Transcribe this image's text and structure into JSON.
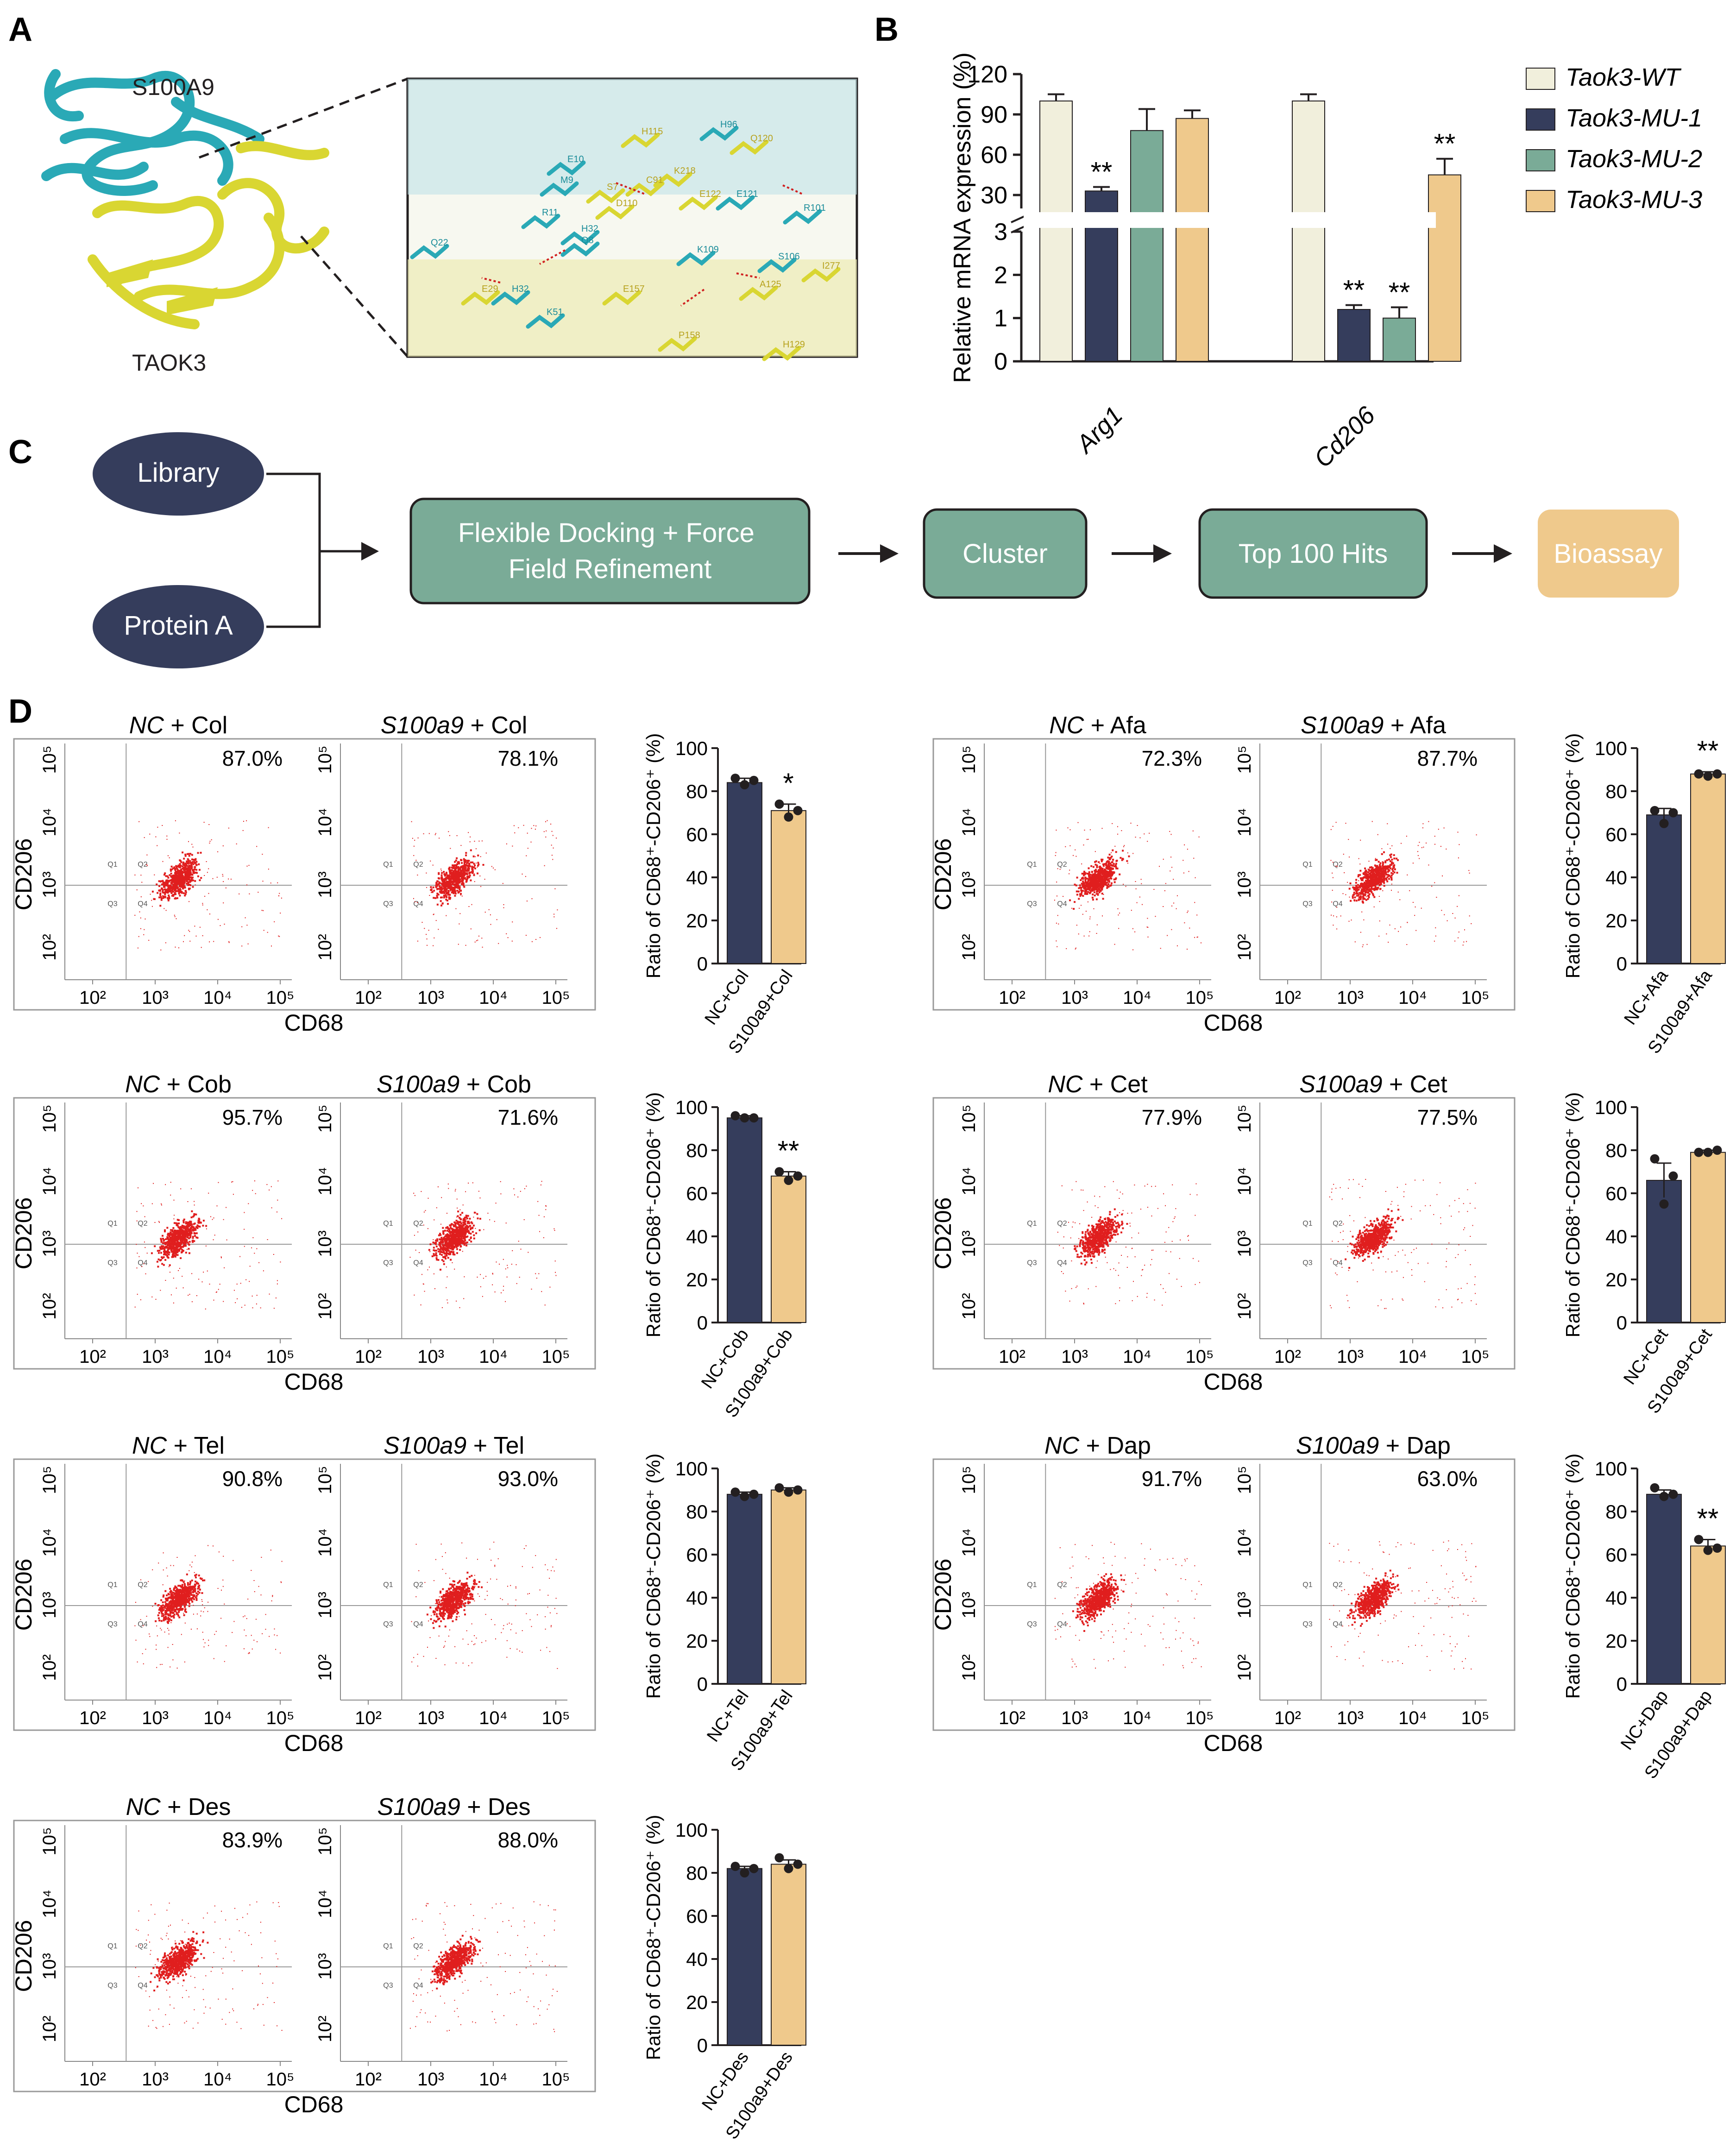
{
  "panels": {
    "A": "A",
    "B": "B",
    "C": "C",
    "D": "D"
  },
  "colors": {
    "navy": "#353d5c",
    "green": "#7aab97",
    "tan": "#efc98c",
    "cream": "#f1efdc",
    "flow_box": "#7aab97",
    "dot": "#e01e1e",
    "cyan": "#2aa9b6",
    "yellow": "#d9d632"
  },
  "panel_a": {
    "label_top": "S100A9",
    "label_bottom": "TAOK3",
    "residue_labels": [
      "H115",
      "H96",
      "Q120",
      "E10",
      "K218",
      "C91",
      "E122",
      "E121",
      "R101",
      "M9",
      "S7",
      "D110",
      "R11",
      "H32",
      "Q8",
      "Q22",
      "K109",
      "S106",
      "I277",
      "E29",
      "H32",
      "K51",
      "E157",
      "A125",
      "P158",
      "H129"
    ]
  },
  "chart_data": [
    {
      "type": "bar",
      "id": "panel-b",
      "ylabel": "Relative mRNA expression (%)",
      "categories": [
        "Arg1",
        "Cd206"
      ],
      "series": [
        {
          "name": "Taok3-WT",
          "values": [
            100,
            100
          ],
          "errors": [
            5,
            5
          ],
          "sig": [
            "",
            ""
          ]
        },
        {
          "name": "Taok3-MU-1",
          "values": [
            33,
            1.2
          ],
          "errors": [
            3,
            0.1
          ],
          "sig": [
            "**",
            "**"
          ]
        },
        {
          "name": "Taok3-MU-2",
          "values": [
            78,
            1.0
          ],
          "errors": [
            16,
            0.25
          ],
          "sig": [
            "",
            "**"
          ]
        },
        {
          "name": "Taok3-MU-3",
          "values": [
            87,
            45
          ],
          "errors": [
            6,
            12
          ],
          "sig": [
            "",
            "**"
          ]
        }
      ],
      "axis_upper": {
        "range": [
          20,
          120
        ],
        "ticks": [
          "120",
          "90",
          "60",
          "30"
        ]
      },
      "axis_lower": {
        "range": [
          0,
          3
        ],
        "ticks": [
          "3",
          "2",
          "1",
          "0"
        ]
      }
    },
    {
      "type": "bar",
      "id": "col",
      "categories": [
        "NC+Col",
        "S100a9+Col"
      ],
      "values": [
        84,
        71
      ],
      "errors": [
        2,
        3
      ],
      "points": [
        [
          86,
          83,
          85
        ],
        [
          74,
          68,
          71
        ]
      ],
      "sig": "*",
      "ylim": [
        0,
        100
      ],
      "ylabel": "Ratio of CD68⁺-CD206⁺ (%)",
      "yticks": [
        "0",
        "20",
        "40",
        "60",
        "80",
        "100"
      ]
    },
    {
      "type": "bar",
      "id": "afa",
      "categories": [
        "NC+Afa",
        "S100a9+Afa"
      ],
      "values": [
        69,
        88
      ],
      "errors": [
        3,
        1
      ],
      "points": [
        [
          71,
          65,
          70
        ],
        [
          88,
          87,
          88
        ]
      ],
      "sig": "**",
      "ylim": [
        0,
        100
      ],
      "ylabel": "Ratio of CD68⁺-CD206⁺ (%)",
      "yticks": [
        "0",
        "20",
        "40",
        "60",
        "80",
        "100"
      ]
    },
    {
      "type": "bar",
      "id": "cob",
      "categories": [
        "NC+Cob",
        "S100a9+Cob"
      ],
      "values": [
        95,
        68
      ],
      "errors": [
        1,
        2
      ],
      "points": [
        [
          96,
          95,
          95
        ],
        [
          70,
          66,
          68
        ]
      ],
      "sig": "**",
      "ylim": [
        0,
        100
      ],
      "ylabel": "Ratio of CD68⁺-CD206⁺ (%)",
      "yticks": [
        "0",
        "20",
        "40",
        "60",
        "80",
        "100"
      ]
    },
    {
      "type": "bar",
      "id": "cet",
      "categories": [
        "NC+Cet",
        "S100a9+Cet"
      ],
      "values": [
        66,
        79
      ],
      "errors": [
        8,
        1
      ],
      "points": [
        [
          76,
          55,
          68
        ],
        [
          79,
          79,
          80
        ]
      ],
      "sig": "",
      "ylim": [
        0,
        100
      ],
      "ylabel": "Ratio of CD68⁺-CD206⁺ (%)",
      "yticks": [
        "0",
        "20",
        "40",
        "60",
        "80",
        "100"
      ]
    },
    {
      "type": "bar",
      "id": "tel",
      "categories": [
        "NC+Tel",
        "S100a9+Tel"
      ],
      "values": [
        88,
        90
      ],
      "errors": [
        1,
        1
      ],
      "points": [
        [
          89,
          87,
          88
        ],
        [
          91,
          89,
          90
        ]
      ],
      "sig": "",
      "ylim": [
        0,
        100
      ],
      "ylabel": "Ratio of CD68⁺-CD206⁺ (%)",
      "yticks": [
        "0",
        "20",
        "40",
        "60",
        "80",
        "100"
      ]
    },
    {
      "type": "bar",
      "id": "dap",
      "categories": [
        "NC+Dap",
        "S100a9+Dap"
      ],
      "values": [
        88,
        64
      ],
      "errors": [
        2,
        3
      ],
      "points": [
        [
          91,
          87,
          88
        ],
        [
          67,
          62,
          63
        ]
      ],
      "sig": "**",
      "ylim": [
        0,
        100
      ],
      "ylabel": "Ratio of CD68⁺-CD206⁺ (%)",
      "yticks": [
        "0",
        "20",
        "40",
        "60",
        "80",
        "100"
      ]
    },
    {
      "type": "bar",
      "id": "des",
      "categories": [
        "NC+Des",
        "S100a9+Des"
      ],
      "values": [
        82,
        84
      ],
      "errors": [
        1,
        2
      ],
      "points": [
        [
          83,
          80,
          82
        ],
        [
          87,
          82,
          84
        ]
      ],
      "sig": "",
      "ylim": [
        0,
        100
      ],
      "ylabel": "Ratio of CD68⁺-CD206⁺ (%)",
      "yticks": [
        "0",
        "20",
        "40",
        "60",
        "80",
        "100"
      ]
    }
  ],
  "panel_c": {
    "nodes": {
      "library": "Library",
      "protein": "Protein A"
    },
    "steps": [
      "Flexible Docking + Force Field Refinement",
      "Cluster",
      "Top 100 Hits",
      "Bioassay"
    ]
  },
  "flow": {
    "axes": {
      "x": "CD68",
      "y": "CD206"
    },
    "decades": [
      "10²",
      "10³",
      "10⁴",
      "10⁵"
    ],
    "quadrants": [
      "Q1",
      "Q2",
      "Q3",
      "Q4"
    ],
    "groups": [
      {
        "id": "col",
        "left_italic": "NC",
        "left_rest": " + Col",
        "left_pct": "87.0%",
        "right_italic": "S100a9",
        "right_rest": " + Col",
        "right_pct": "78.1%"
      },
      {
        "id": "afa",
        "left_italic": "NC",
        "left_rest": " + Afa",
        "left_pct": "72.3%",
        "right_italic": "S100a9",
        "right_rest": " + Afa",
        "right_pct": "87.7%"
      },
      {
        "id": "cob",
        "left_italic": "NC",
        "left_rest": " + Cob",
        "left_pct": "95.7%",
        "right_italic": "S100a9",
        "right_rest": " + Cob",
        "right_pct": "71.6%"
      },
      {
        "id": "cet",
        "left_italic": "NC",
        "left_rest": " + Cet",
        "left_pct": "77.9%",
        "right_italic": "S100a9",
        "right_rest": " + Cet",
        "right_pct": "77.5%"
      },
      {
        "id": "tel",
        "left_italic": "NC",
        "left_rest": " + Tel",
        "left_pct": "90.8%",
        "right_italic": "S100a9",
        "right_rest": "  + Tel",
        "right_pct": "93.0%"
      },
      {
        "id": "dap",
        "left_italic": "NC",
        "left_rest": " + Dap",
        "left_pct": "91.7%",
        "right_italic": "S100a9",
        "right_rest": " + Dap",
        "right_pct": "63.0%"
      },
      {
        "id": "des",
        "left_italic": "NC",
        "left_rest": " + Des",
        "left_pct": "83.9%",
        "right_italic": "S100a9",
        "right_rest": " + Des",
        "right_pct": "88.0%"
      }
    ]
  }
}
